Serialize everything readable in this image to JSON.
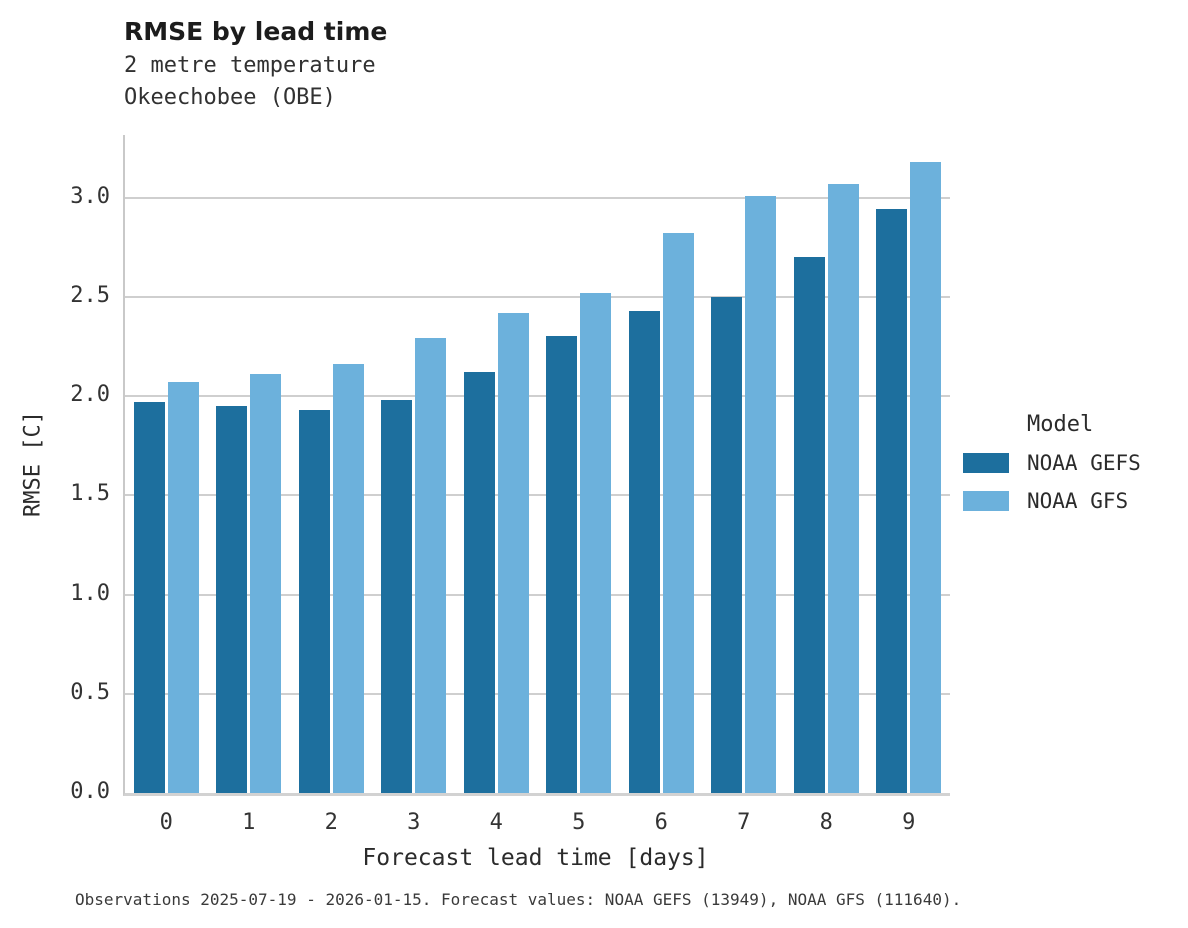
{
  "chart_data": {
    "type": "bar",
    "title": "RMSE by lead time",
    "subtitle": [
      "2 metre temperature",
      "Okeechobee (OBE)"
    ],
    "categories": [
      "0",
      "1",
      "2",
      "3",
      "4",
      "5",
      "6",
      "7",
      "8",
      "9"
    ],
    "series": [
      {
        "name": "NOAA GEFS",
        "color": "#1d6f9e",
        "values": [
          1.97,
          1.95,
          1.93,
          1.98,
          2.12,
          2.3,
          2.43,
          2.5,
          2.7,
          2.94
        ]
      },
      {
        "name": "NOAA GFS",
        "color": "#6cb1dc",
        "values": [
          2.07,
          2.11,
          2.16,
          2.29,
          2.42,
          2.52,
          2.82,
          3.01,
          3.07,
          3.18
        ]
      }
    ],
    "xlabel": "Forecast lead time [days]",
    "ylabel": "RMSE [C]",
    "ylim": [
      0,
      3.315
    ],
    "yticks": [
      0.0,
      0.5,
      1.0,
      1.5,
      2.0,
      2.5,
      3.0
    ],
    "grid": true,
    "legend_title": "Model",
    "legend_position": "right",
    "caption": "Observations 2025-07-19 - 2026-01-15. Forecast values: NOAA GEFS (13949), NOAA GFS (111640)."
  }
}
